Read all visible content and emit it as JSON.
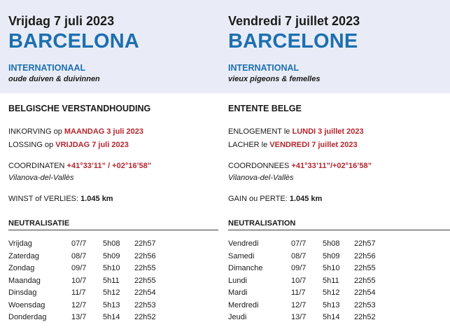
{
  "left": {
    "date": "Vrijdag 7 juli 2023",
    "city": "BARCELONA",
    "type": "INTERNATIONAAL",
    "category": "oude duiven & duivinnen",
    "organization": "BELGISCHE VERSTANDHOUDING",
    "basketing_label": "INKORVING op ",
    "basketing_value": "MAANDAG 3 juli 2023",
    "release_label": "LOSSING op ",
    "release_value": "VRIJDAG 7 juli 2023",
    "coords_label": "COORDINATEN ",
    "coords_value": "+41°33’11” / +02°16’58”",
    "place": "Vilanova-del-Vallès",
    "gain_label": "WINST of VERLIES: ",
    "gain_value": "1.045 km",
    "neutralisation_title": "NEUTRALISATIE",
    "rows": [
      {
        "day": "Vrijdag",
        "date": "07/7",
        "start": "5h08",
        "end": "22h57"
      },
      {
        "day": "Zaterdag",
        "date": "08/7",
        "start": "5h09",
        "end": "22h56"
      },
      {
        "day": "Zondag",
        "date": "09/7",
        "start": "5h10",
        "end": "22h55"
      },
      {
        "day": "Maandag",
        "date": "10/7",
        "start": "5h11",
        "end": "22h55"
      },
      {
        "day": "Dinsdag",
        "date": "11/7",
        "start": "5h12",
        "end": "22h54"
      },
      {
        "day": "Woensdag",
        "date": "12/7",
        "start": "5h13",
        "end": "22h53"
      },
      {
        "day": "Donderdag",
        "date": "13/7",
        "start": "5h14",
        "end": "22h52"
      }
    ]
  },
  "right": {
    "date": "Vendredi 7 juillet 2023",
    "city": "BARCELONE",
    "type": "INTERNATIONAL",
    "category": "vieux pigeons & femelles",
    "organization": "ENTENTE BELGE",
    "basketing_label": "ENLOGEMENT le ",
    "basketing_value": "LUNDI 3 juillet 2023",
    "release_label": "LACHER le ",
    "release_value": "VENDREDI 7 juillet 2023",
    "coords_label": "COORDONNEES ",
    "coords_value": "+41°33’11”/+02°16’58”",
    "place": "Vilanova-del-Vallès",
    "gain_label": "GAIN ou PERTE: ",
    "gain_value": "1.045 km",
    "neutralisation_title": "NEUTRALISATION",
    "rows": [
      {
        "day": "Vendredi",
        "date": "07/7",
        "start": "5h08",
        "end": "22h57"
      },
      {
        "day": "Samedi",
        "date": "08/7",
        "start": "5h09",
        "end": "22h56"
      },
      {
        "day": "Dimanche",
        "date": "09/7",
        "start": "5h10",
        "end": "22h55"
      },
      {
        "day": "Lundi",
        "date": "10/7",
        "start": "5h11",
        "end": "22h55"
      },
      {
        "day": "Mardi",
        "date": "11/7",
        "start": "5h12",
        "end": "22h54"
      },
      {
        "day": "Merdredi",
        "date": "12/7",
        "start": "5h13",
        "end": "22h53"
      },
      {
        "day": "Jeudi",
        "date": "13/7",
        "start": "5h14",
        "end": "22h52"
      }
    ]
  }
}
